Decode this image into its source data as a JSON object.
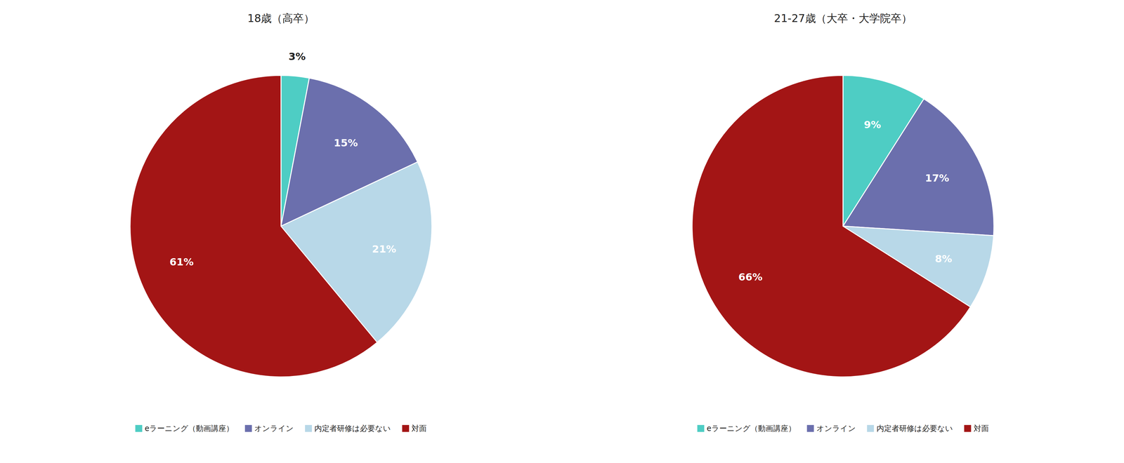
{
  "chart_data": [
    {
      "type": "pie",
      "title": "18歳（高卒）",
      "categories": [
        "eラーニング（動画講座）",
        "オンライン",
        "内定者研修は必要ない",
        "対面"
      ],
      "values": [
        3,
        15,
        21,
        61
      ],
      "value_labels": [
        "3%",
        "15%",
        "21%",
        "61%"
      ],
      "colors": [
        "#4ecdc4",
        "#6b6fad",
        "#b8d8e8",
        "#a31515"
      ],
      "data_labels": true,
      "legend": "bottom"
    },
    {
      "type": "pie",
      "title": "21-27歳（大卒・大学院卒）",
      "categories": [
        "eラーニング（動画講座）",
        "オンライン",
        "内定者研修は必要ない",
        "対面"
      ],
      "values": [
        9,
        17,
        8,
        66
      ],
      "value_labels": [
        "9%",
        "17%",
        "8%",
        "66%"
      ],
      "colors": [
        "#4ecdc4",
        "#6b6fad",
        "#b8d8e8",
        "#a31515"
      ],
      "data_labels": true,
      "legend": "bottom"
    }
  ]
}
